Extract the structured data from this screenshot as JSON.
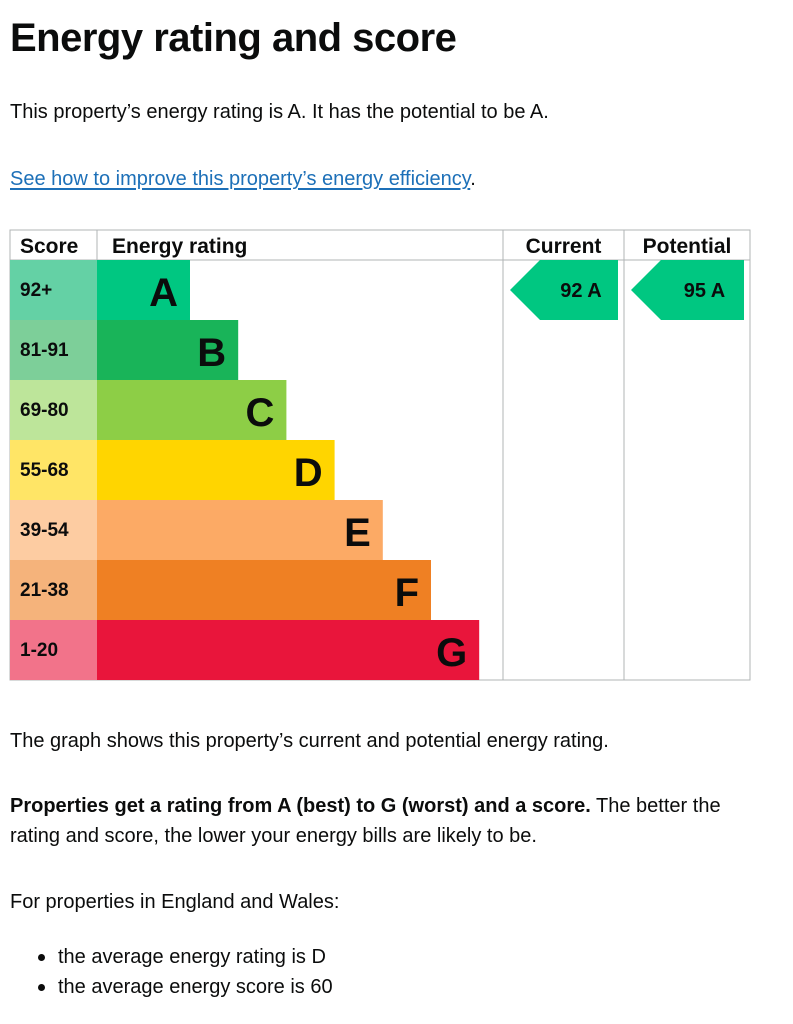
{
  "page": {
    "title": "Energy rating and score",
    "intro": "This property’s energy rating is A. It has the potential to be A.",
    "improve_link": "See how to improve this property’s energy efficiency",
    "improve_suffix": ".",
    "graph_description": "The graph shows this property’s current and potential energy rating.",
    "rating_explanation_bold": "Properties get a rating from A (best) to G (worst) and a score.",
    "rating_explanation_rest": " The better the rating and score, the lower your energy bills are likely to be.",
    "region_intro": "For properties in England and Wales:",
    "averages": [
      "the average energy rating is D",
      "the average energy score is 60"
    ]
  },
  "epc": {
    "headers": {
      "score": "Score",
      "rating": "Energy rating",
      "current": "Current",
      "potential": "Potential"
    },
    "bands": [
      {
        "range": "92+",
        "letter": "A",
        "color": "#00c781",
        "score_bg": "#64d1a5"
      },
      {
        "range": "81-91",
        "letter": "B",
        "color": "#19b459",
        "score_bg": "#7dcf99"
      },
      {
        "range": "69-80",
        "letter": "C",
        "color": "#8dce46",
        "score_bg": "#bde59a"
      },
      {
        "range": "55-68",
        "letter": "D",
        "color": "#ffd500",
        "score_bg": "#ffe566"
      },
      {
        "range": "39-54",
        "letter": "E",
        "color": "#fcaa65",
        "score_bg": "#fdcca2"
      },
      {
        "range": "21-38",
        "letter": "F",
        "color": "#ef8023",
        "score_bg": "#f5b37b"
      },
      {
        "range": "1-20",
        "letter": "G",
        "color": "#e9153b",
        "score_bg": "#f2738a"
      }
    ],
    "current": {
      "score": 92,
      "letter": "A",
      "label": "92  A",
      "color": "#00c781"
    },
    "potential": {
      "score": 95,
      "letter": "A",
      "label": "95  A",
      "color": "#00c781"
    }
  }
}
